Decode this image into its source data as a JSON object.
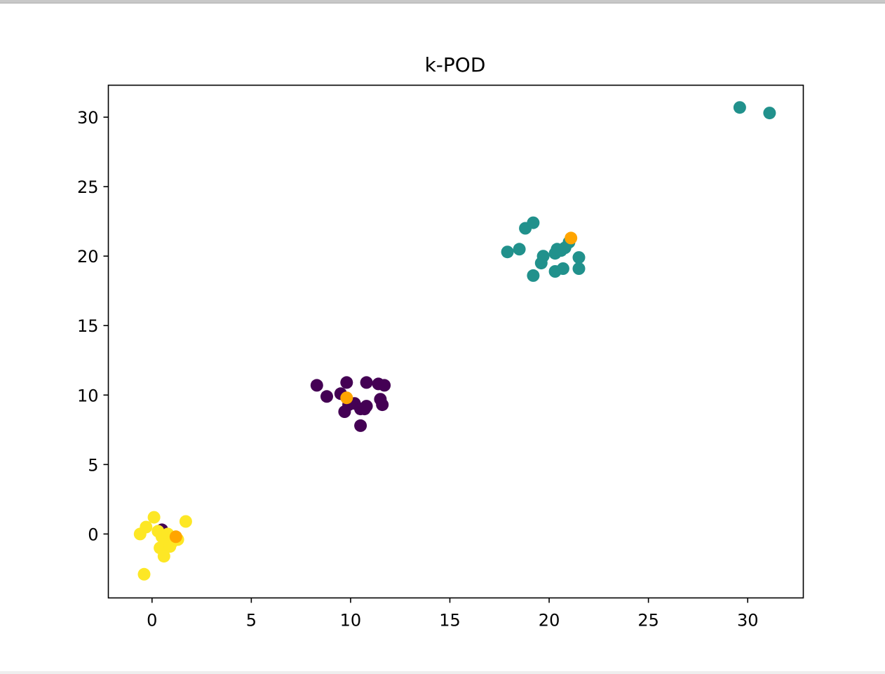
{
  "chart_data": {
    "type": "scatter",
    "title": "k-POD",
    "xlabel": "",
    "ylabel": "",
    "xlim": [
      -2.2,
      32.8
    ],
    "ylim": [
      -4.6,
      32.3
    ],
    "xticks": [
      0,
      5,
      10,
      15,
      20,
      25,
      30
    ],
    "yticks": [
      0,
      5,
      10,
      15,
      20,
      25,
      30
    ],
    "grid": false,
    "series": [
      {
        "color": "#440154",
        "points": [
          [
            8.3,
            10.7
          ],
          [
            8.8,
            9.9
          ],
          [
            9.5,
            10.1
          ],
          [
            9.8,
            10.9
          ],
          [
            9.7,
            8.8
          ],
          [
            9.9,
            9.3
          ],
          [
            10.2,
            9.4
          ],
          [
            10.5,
            9.0
          ],
          [
            10.7,
            9.0
          ],
          [
            10.8,
            9.2
          ],
          [
            10.5,
            7.8
          ],
          [
            10.8,
            10.9
          ],
          [
            11.4,
            10.8
          ],
          [
            11.7,
            10.7
          ],
          [
            11.5,
            9.7
          ],
          [
            11.6,
            9.3
          ],
          [
            0.5,
            0.3
          ]
        ]
      },
      {
        "color": "#21918c",
        "points": [
          [
            17.9,
            20.3
          ],
          [
            18.5,
            20.5
          ],
          [
            18.8,
            22.0
          ],
          [
            19.2,
            22.4
          ],
          [
            19.2,
            18.6
          ],
          [
            19.6,
            19.5
          ],
          [
            19.7,
            20.0
          ],
          [
            20.3,
            20.2
          ],
          [
            20.4,
            20.5
          ],
          [
            20.6,
            20.4
          ],
          [
            20.8,
            20.6
          ],
          [
            20.3,
            18.9
          ],
          [
            20.7,
            19.1
          ],
          [
            21.0,
            21.0
          ],
          [
            21.5,
            19.9
          ],
          [
            21.5,
            19.1
          ],
          [
            29.6,
            30.7
          ],
          [
            31.1,
            30.3
          ]
        ]
      },
      {
        "color": "#fde725",
        "points": [
          [
            -0.6,
            0.0
          ],
          [
            -0.3,
            0.5
          ],
          [
            0.1,
            1.2
          ],
          [
            0.3,
            0.2
          ],
          [
            0.5,
            -0.2
          ],
          [
            0.4,
            -1.0
          ],
          [
            0.6,
            -0.8
          ],
          [
            0.8,
            0.0
          ],
          [
            0.9,
            -0.3
          ],
          [
            1.0,
            -0.6
          ],
          [
            0.9,
            -0.9
          ],
          [
            1.3,
            -0.4
          ],
          [
            0.6,
            -1.6
          ],
          [
            1.7,
            0.9
          ],
          [
            -0.4,
            -2.9
          ]
        ]
      },
      {
        "color": "#ffa500",
        "points": [
          [
            9.8,
            9.8
          ],
          [
            21.1,
            21.3
          ],
          [
            1.2,
            -0.2
          ]
        ]
      }
    ]
  }
}
